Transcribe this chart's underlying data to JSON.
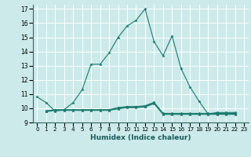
{
  "xlabel": "Humidex (Indice chaleur)",
  "background_color": "#cceaea",
  "grid_color": "#ffffff",
  "line_color": "#1a7a6e",
  "xlim": [
    -0.5,
    23.5
  ],
  "ylim": [
    9,
    17.3
  ],
  "yticks": [
    9,
    10,
    11,
    12,
    13,
    14,
    15,
    16,
    17
  ],
  "xticks": [
    0,
    1,
    2,
    3,
    4,
    5,
    6,
    7,
    8,
    9,
    10,
    11,
    12,
    13,
    14,
    15,
    16,
    17,
    18,
    19,
    20,
    21,
    22,
    23
  ],
  "main_x": [
    0,
    1,
    2,
    3,
    4,
    5,
    6,
    7,
    8,
    9,
    10,
    11,
    12,
    13,
    14,
    15,
    16,
    17,
    18,
    19,
    20,
    21,
    22
  ],
  "main_y": [
    10.8,
    10.4,
    9.8,
    9.9,
    10.4,
    11.3,
    13.1,
    13.1,
    13.9,
    15.0,
    15.8,
    16.2,
    17.0,
    14.7,
    13.7,
    15.1,
    12.8,
    11.5,
    10.5,
    9.6,
    9.7,
    9.7,
    9.7
  ],
  "flat1_x": [
    1,
    2,
    3,
    4,
    5,
    6,
    7,
    8,
    9,
    10,
    11,
    12,
    13,
    14,
    15,
    16,
    17,
    18,
    19,
    20,
    21,
    22
  ],
  "flat1_y": [
    9.82,
    9.9,
    9.9,
    9.9,
    9.9,
    9.9,
    9.9,
    9.9,
    10.05,
    10.12,
    10.12,
    10.18,
    10.42,
    9.64,
    9.64,
    9.64,
    9.64,
    9.64,
    9.64,
    9.64,
    9.64,
    9.64
  ],
  "flat2_x": [
    1,
    2,
    3,
    4,
    5,
    6,
    7,
    8,
    9,
    10,
    11,
    12,
    13,
    14,
    15,
    16,
    17,
    18,
    19,
    20,
    21,
    22
  ],
  "flat2_y": [
    9.79,
    9.88,
    9.88,
    9.88,
    9.88,
    9.88,
    9.88,
    9.88,
    10.0,
    10.08,
    10.08,
    10.13,
    10.38,
    9.6,
    9.6,
    9.6,
    9.6,
    9.6,
    9.6,
    9.6,
    9.6,
    9.6
  ],
  "flat3_x": [
    1,
    2,
    3,
    4,
    5,
    6,
    7,
    8,
    9,
    10,
    11,
    12,
    13,
    14,
    15,
    16,
    17,
    18,
    19,
    20,
    21,
    22
  ],
  "flat3_y": [
    9.76,
    9.85,
    9.85,
    9.85,
    9.85,
    9.85,
    9.85,
    9.85,
    9.96,
    10.04,
    10.04,
    10.09,
    10.33,
    9.57,
    9.57,
    9.57,
    9.57,
    9.57,
    9.57,
    9.57,
    9.57,
    9.57
  ]
}
